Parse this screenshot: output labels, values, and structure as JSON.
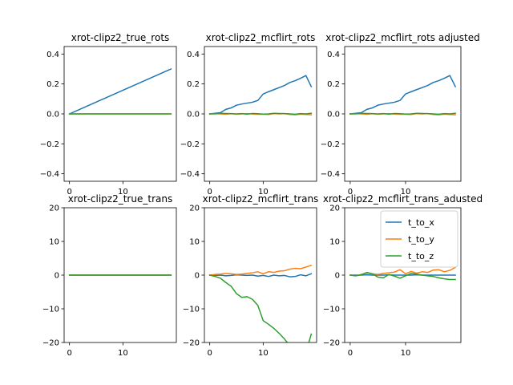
{
  "chart_data": [
    {
      "type": "line",
      "title": "xrot-clipz2_true_rots",
      "xlabel": "",
      "ylabel": "",
      "xlim": [
        -1,
        20
      ],
      "ylim": [
        -0.45,
        0.45
      ],
      "xticks": [
        0,
        10
      ],
      "yticks": [
        -0.4,
        -0.2,
        0.0,
        0.2,
        0.4
      ],
      "ytick_labels": [
        "−0.4",
        "−0.2",
        "0.0",
        "0.2",
        "0.4"
      ],
      "show_xtick_labels": true,
      "show_ytick_labels": true,
      "series": [
        {
          "color": "#1f77b4",
          "x": [
            0,
            19
          ],
          "y": [
            0.0,
            0.3
          ]
        },
        {
          "color": "#ff7f0e",
          "x": [
            0,
            19
          ],
          "y": [
            0.0,
            0.0
          ]
        },
        {
          "color": "#2ca02c",
          "x": [
            0,
            19
          ],
          "y": [
            0.0,
            0.0
          ]
        }
      ]
    },
    {
      "type": "line",
      "title": "xrot-clipz2_mcflirt_rots",
      "xlabel": "",
      "ylabel": "",
      "xlim": [
        -1,
        20
      ],
      "ylim": [
        -0.45,
        0.45
      ],
      "xticks": [
        0,
        10
      ],
      "yticks": [
        -0.4,
        -0.2,
        0.0,
        0.2,
        0.4
      ],
      "ytick_labels": [
        "−0.4",
        "−0.2",
        "0.0",
        "0.2",
        "0.4"
      ],
      "show_xtick_labels": true,
      "show_ytick_labels": true,
      "series": [
        {
          "color": "#1f77b4",
          "x": [
            0,
            1,
            2,
            3,
            4,
            5,
            6,
            7,
            8,
            9,
            10,
            11,
            12,
            13,
            14,
            15,
            16,
            17,
            18,
            19
          ],
          "y": [
            0.0,
            0.004,
            0.008,
            0.03,
            0.04,
            0.058,
            0.066,
            0.072,
            0.078,
            0.09,
            0.133,
            0.148,
            0.162,
            0.176,
            0.19,
            0.21,
            0.222,
            0.238,
            0.256,
            0.182
          ]
        },
        {
          "color": "#ff7f0e",
          "x": [
            0,
            1,
            2,
            3,
            4,
            5,
            6,
            7,
            8,
            9,
            10,
            11,
            12,
            13,
            14,
            15,
            16,
            17,
            18,
            19
          ],
          "y": [
            0.0,
            0.002,
            0.0,
            -0.002,
            0.001,
            -0.002,
            0.0,
            0.002,
            -0.001,
            -0.003,
            -0.003,
            -0.004,
            0.002,
            0.0,
            0.002,
            -0.004,
            -0.006,
            -0.002,
            -0.004,
            -0.006
          ]
        },
        {
          "color": "#2ca02c",
          "x": [
            0,
            1,
            2,
            3,
            4,
            5,
            6,
            7,
            8,
            9,
            10,
            11,
            12,
            13,
            14,
            15,
            16,
            17,
            18,
            19
          ],
          "y": [
            0.0,
            0.0,
            0.004,
            0.003,
            0.002,
            0.0,
            0.002,
            -0.002,
            0.003,
            0.001,
            -0.001,
            0.0,
            0.004,
            0.003,
            0.002,
            0.0,
            -0.002,
            0.002,
            0.0,
            0.004
          ]
        }
      ]
    },
    {
      "type": "line",
      "title": "xrot-clipz2_mcflirt_rots adjusted",
      "xlabel": "",
      "ylabel": "",
      "xlim": [
        -1,
        20
      ],
      "ylim": [
        -0.45,
        0.45
      ],
      "xticks": [
        0,
        10
      ],
      "yticks": [
        -0.4,
        -0.2,
        0.0,
        0.2,
        0.4
      ],
      "ytick_labels": [
        "−0.4",
        "−0.2",
        "0.0",
        "0.2",
        "0.4"
      ],
      "show_xtick_labels": true,
      "show_ytick_labels": true,
      "series": [
        {
          "color": "#1f77b4",
          "x": [
            0,
            1,
            2,
            3,
            4,
            5,
            6,
            7,
            8,
            9,
            10,
            11,
            12,
            13,
            14,
            15,
            16,
            17,
            18,
            19
          ],
          "y": [
            0.0,
            0.004,
            0.008,
            0.03,
            0.04,
            0.058,
            0.066,
            0.072,
            0.078,
            0.09,
            0.133,
            0.148,
            0.162,
            0.176,
            0.19,
            0.21,
            0.222,
            0.238,
            0.256,
            0.182
          ]
        },
        {
          "color": "#ff7f0e",
          "x": [
            0,
            1,
            2,
            3,
            4,
            5,
            6,
            7,
            8,
            9,
            10,
            11,
            12,
            13,
            14,
            15,
            16,
            17,
            18,
            19
          ],
          "y": [
            0.0,
            0.002,
            0.0,
            -0.002,
            0.001,
            -0.002,
            0.0,
            0.002,
            -0.001,
            -0.003,
            -0.003,
            -0.004,
            0.002,
            0.0,
            0.002,
            -0.004,
            -0.006,
            -0.002,
            -0.004,
            -0.006
          ]
        },
        {
          "color": "#2ca02c",
          "x": [
            0,
            1,
            2,
            3,
            4,
            5,
            6,
            7,
            8,
            9,
            10,
            11,
            12,
            13,
            14,
            15,
            16,
            17,
            18,
            19
          ],
          "y": [
            0.0,
            0.0,
            0.004,
            0.003,
            0.002,
            0.0,
            0.002,
            -0.002,
            0.003,
            0.001,
            -0.001,
            0.0,
            0.004,
            0.003,
            0.002,
            0.0,
            -0.002,
            0.002,
            0.0,
            0.004
          ]
        }
      ]
    },
    {
      "type": "line",
      "title": "xrot-clipz2_true_trans",
      "xlabel": "",
      "ylabel": "",
      "xlim": [
        -1,
        20
      ],
      "ylim": [
        -20,
        20
      ],
      "xticks": [
        0,
        10
      ],
      "yticks": [
        -20,
        -10,
        0,
        10,
        20
      ],
      "ytick_labels": [
        "−20",
        "−10",
        "0",
        "10",
        "20"
      ],
      "show_xtick_labels": true,
      "show_ytick_labels": true,
      "series": [
        {
          "color": "#1f77b4",
          "x": [
            0,
            19
          ],
          "y": [
            0,
            0
          ]
        },
        {
          "color": "#ff7f0e",
          "x": [
            0,
            19
          ],
          "y": [
            0,
            0
          ]
        },
        {
          "color": "#2ca02c",
          "x": [
            0,
            19
          ],
          "y": [
            0,
            0
          ]
        }
      ]
    },
    {
      "type": "line",
      "title": "xrot-clipz2_mcflirt_trans",
      "xlabel": "",
      "ylabel": "",
      "xlim": [
        -1,
        20
      ],
      "ylim": [
        -20,
        20
      ],
      "xticks": [
        0,
        10
      ],
      "yticks": [
        -20,
        -10,
        0,
        10,
        20
      ],
      "ytick_labels": [
        "−20",
        "−10",
        "0",
        "10",
        "20"
      ],
      "show_xtick_labels": true,
      "show_ytick_labels": true,
      "series": [
        {
          "color": "#1f77b4",
          "x": [
            0,
            1,
            2,
            3,
            4,
            5,
            6,
            7,
            8,
            9,
            10,
            11,
            12,
            13,
            14,
            15,
            16,
            17,
            18,
            19
          ],
          "y": [
            0.0,
            -0.1,
            0.0,
            -0.2,
            -0.1,
            0.1,
            0.0,
            -0.1,
            0.0,
            -0.3,
            -0.1,
            -0.4,
            0.0,
            -0.2,
            -0.1,
            -0.5,
            -0.4,
            0.1,
            -0.2,
            0.4
          ]
        },
        {
          "color": "#ff7f0e",
          "x": [
            0,
            1,
            2,
            3,
            4,
            5,
            6,
            7,
            8,
            9,
            10,
            11,
            12,
            13,
            14,
            15,
            16,
            17,
            18,
            19
          ],
          "y": [
            0.0,
            0.2,
            0.3,
            0.5,
            0.4,
            0.2,
            0.3,
            0.5,
            0.7,
            1.0,
            0.4,
            1.0,
            0.8,
            1.2,
            1.3,
            1.8,
            2.0,
            1.9,
            2.4,
            2.9
          ]
        },
        {
          "color": "#2ca02c",
          "x": [
            0,
            1,
            2,
            3,
            4,
            5,
            6,
            7,
            8,
            9,
            10,
            11,
            12,
            13,
            14,
            15,
            16,
            17,
            18,
            19
          ],
          "y": [
            0.0,
            -0.4,
            -0.9,
            -2.2,
            -3.3,
            -5.5,
            -6.6,
            -6.4,
            -7.2,
            -9.0,
            -13.5,
            -14.6,
            -15.8,
            -17.3,
            -19.0,
            -21.0,
            -22.5,
            -24.0,
            -23.0,
            -17.5
          ]
        }
      ]
    },
    {
      "type": "line",
      "title": "xrot-clipz2_mcflirt_trans_adusted",
      "xlabel": "",
      "ylabel": "",
      "xlim": [
        -1,
        20
      ],
      "ylim": [
        -20,
        20
      ],
      "xticks": [
        0,
        10
      ],
      "yticks": [
        -20,
        -10,
        0,
        10,
        20
      ],
      "ytick_labels": [
        "−20",
        "−10",
        "0",
        "10",
        "20"
      ],
      "show_xtick_labels": true,
      "show_ytick_labels": true,
      "legend": {
        "placement": "top-right",
        "entries": [
          "t_to_x",
          "t_to_y",
          "t_to_z"
        ]
      },
      "series": [
        {
          "name": "t_to_x",
          "color": "#1f77b4",
          "x": [
            0,
            1,
            2,
            3,
            4,
            5,
            6,
            7,
            8,
            9,
            10,
            11,
            12,
            13,
            14,
            15,
            16,
            17,
            18,
            19
          ],
          "y": [
            0.0,
            0.0,
            0.0,
            0.1,
            0.0,
            0.0,
            0.0,
            0.1,
            0.0,
            0.0,
            0.0,
            0.0,
            0.1,
            0.0,
            0.0,
            0.0,
            0.0,
            0.0,
            0.0,
            0.0
          ]
        },
        {
          "name": "t_to_y",
          "color": "#ff7f0e",
          "x": [
            0,
            1,
            2,
            3,
            4,
            5,
            6,
            7,
            8,
            9,
            10,
            11,
            12,
            13,
            14,
            15,
            16,
            17,
            18,
            19
          ],
          "y": [
            0.0,
            -0.2,
            0.2,
            0.6,
            0.4,
            0.2,
            0.5,
            0.7,
            0.9,
            1.6,
            0.4,
            1.1,
            0.6,
            1.0,
            0.8,
            1.5,
            1.6,
            1.0,
            1.4,
            2.3
          ]
        },
        {
          "name": "t_to_z",
          "color": "#2ca02c",
          "x": [
            0,
            1,
            2,
            3,
            4,
            5,
            6,
            7,
            8,
            9,
            10,
            11,
            12,
            13,
            14,
            15,
            16,
            17,
            18,
            19
          ],
          "y": [
            0.0,
            -0.2,
            0.1,
            0.8,
            0.4,
            -0.6,
            -0.8,
            0.2,
            -0.3,
            -0.9,
            -0.2,
            0.5,
            0.3,
            0.0,
            -0.2,
            -0.4,
            -0.8,
            -1.1,
            -1.3,
            -1.3
          ]
        }
      ]
    }
  ]
}
